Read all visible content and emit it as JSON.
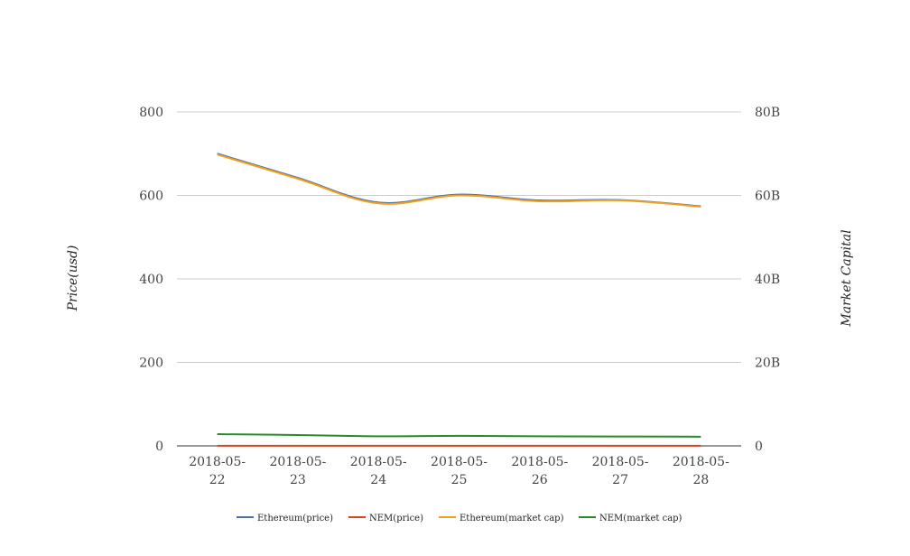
{
  "chart_data": {
    "type": "line",
    "categories": [
      "2018-05-22",
      "2018-05-23",
      "2018-05-24",
      "2018-05-25",
      "2018-05-26",
      "2018-05-27",
      "2018-05-28"
    ],
    "category_lines": [
      [
        "2018-05-",
        "22"
      ],
      [
        "2018-05-",
        "23"
      ],
      [
        "2018-05-",
        "24"
      ],
      [
        "2018-05-",
        "25"
      ],
      [
        "2018-05-",
        "26"
      ],
      [
        "2018-05-",
        "27"
      ],
      [
        "2018-05-",
        "28"
      ]
    ],
    "ylabel": "Price(usd)",
    "y2label": "Market Capital",
    "ylim": [
      0,
      800
    ],
    "y2lim": [
      0,
      80000000000
    ],
    "yticks": [
      0,
      200,
      400,
      600,
      800
    ],
    "y2ticks": [
      0,
      20000000000,
      40000000000,
      60000000000,
      80000000000
    ],
    "y2tick_labels": [
      "0",
      "20B",
      "40B",
      "60B",
      "80B"
    ],
    "grid": true,
    "legend_position": "bottom",
    "series": [
      {
        "name": "Ethereum(price)",
        "axis": "left",
        "color": "#4a6fa5",
        "values": [
          700,
          642,
          583,
          602,
          588,
          589,
          574
        ]
      },
      {
        "name": "NEM(price)",
        "axis": "left",
        "color": "#d9441f",
        "values": [
          0.29,
          0.27,
          0.25,
          0.26,
          0.25,
          0.25,
          0.24
        ]
      },
      {
        "name": "Ethereum(market cap)",
        "axis": "right",
        "color": "#f0a020",
        "values": [
          69800000000,
          64000000000,
          58100000000,
          60000000000,
          58600000000,
          58800000000,
          57300000000
        ]
      },
      {
        "name": "NEM(market cap)",
        "axis": "right",
        "color": "#2a8a2a",
        "values": [
          2800000000,
          2600000000,
          2300000000,
          2400000000,
          2300000000,
          2250000000,
          2200000000
        ]
      }
    ]
  }
}
